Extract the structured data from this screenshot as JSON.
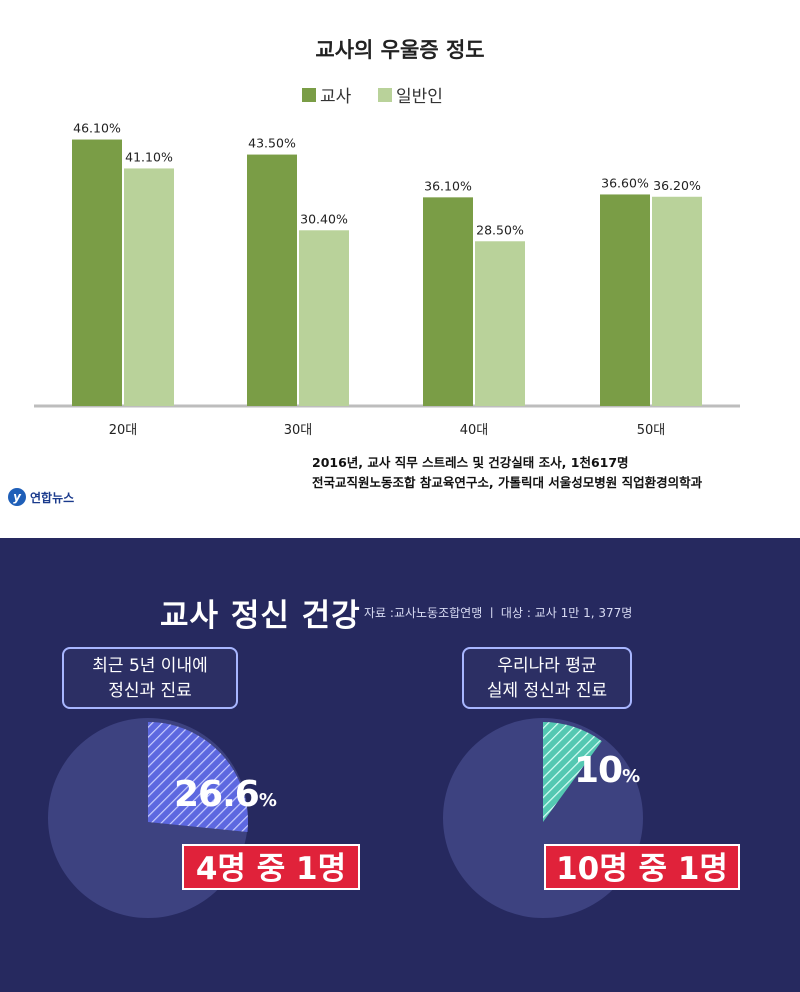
{
  "chart_data": [
    {
      "type": "bar",
      "title": "교사의 우울증 정도",
      "categories": [
        "20대",
        "30대",
        "40대",
        "50대"
      ],
      "series": [
        {
          "name": "교사",
          "values": [
            46.1,
            43.5,
            36.1,
            36.6
          ],
          "labels": [
            "46.10%",
            "43.50%",
            "36.10%",
            "36.60%"
          ],
          "color": "#7a9d46"
        },
        {
          "name": "일반인",
          "values": [
            41.1,
            30.4,
            28.5,
            36.2
          ],
          "labels": [
            "41.10%",
            "30.40%",
            "28.50%",
            "36.20%"
          ],
          "color": "#b9d29a"
        }
      ],
      "legend": "top-center",
      "grid": false
    },
    {
      "type": "pie",
      "caption": "최근 5년 이내에 정신과 진료",
      "values": [
        26.6,
        73.4
      ],
      "value_label": "26.6",
      "unit": "%",
      "ratio_label": "4명 중 1명",
      "highlight_color": "#6f78e8"
    },
    {
      "type": "pie",
      "caption": "우리나라 평균 실제 정신과 진료",
      "values": [
        10,
        90
      ],
      "value_label": "10",
      "unit": "%",
      "ratio_label": "10명 중 1명",
      "highlight_color": "#6fd8c4"
    }
  ],
  "source_lines": [
    "2016년, 교사 직무 스트레스 및 건강실태 조사, 1천617명",
    "전국교직원노동조합 참교육연구소, 가톨릭대 서울성모병원 직업환경의학과"
  ],
  "logo_text": "연합뉴스",
  "infographic": {
    "title": "교사 정신 건강",
    "source": "자료 :교사노동조합연맹  ㅣ 대상 : 교사 1만 1, 377명",
    "left_caption_1": "최근 5년 이내에",
    "left_caption_2": "정신과 진료",
    "right_caption_1": "우리나라 평균",
    "right_caption_2": "실제 정신과 진료"
  }
}
